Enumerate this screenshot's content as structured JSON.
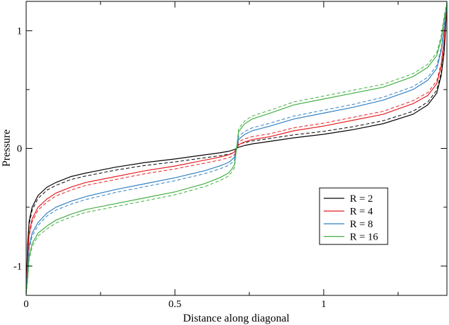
{
  "chart_data": {
    "type": "line",
    "title": "",
    "xlabel": "Distance along diagonal",
    "ylabel": "Pressure",
    "xlim": [
      0,
      1.4142
    ],
    "ylim": [
      -1.25,
      1.25
    ],
    "x_ticks": [
      0,
      0.5,
      1
    ],
    "x_tick_labels": [
      "0",
      "0.5",
      "1"
    ],
    "y_ticks": [
      -1,
      0,
      1
    ],
    "y_tick_labels": [
      "-1",
      "0",
      "1"
    ],
    "grid": false,
    "legend_position": "lower-right",
    "x": [
      0,
      0.005,
      0.01,
      0.02,
      0.04,
      0.07,
      0.1,
      0.15,
      0.2,
      0.3,
      0.4,
      0.5,
      0.6,
      0.65,
      0.68,
      0.69,
      0.7,
      0.7071,
      0.714,
      0.725,
      0.735,
      0.76,
      0.82,
      0.9,
      1.0,
      1.1,
      1.2,
      1.3,
      1.35,
      1.38,
      1.395,
      1.405,
      1.4142
    ],
    "series": [
      {
        "name": "R = 2",
        "color": "#000000",
        "values": [
          -1.22,
          -0.82,
          -0.62,
          -0.5,
          -0.4,
          -0.33,
          -0.29,
          -0.24,
          -0.21,
          -0.16,
          -0.12,
          -0.09,
          -0.055,
          -0.038,
          -0.025,
          -0.018,
          -0.01,
          0,
          0.01,
          0.018,
          0.025,
          0.038,
          0.06,
          0.09,
          0.12,
          0.16,
          0.21,
          0.29,
          0.37,
          0.47,
          0.62,
          0.82,
          1.22
        ]
      },
      {
        "name": "R = 4",
        "color": "#e8191c",
        "values": [
          -1.22,
          -0.92,
          -0.72,
          -0.6,
          -0.5,
          -0.43,
          -0.38,
          -0.33,
          -0.29,
          -0.24,
          -0.19,
          -0.15,
          -0.1,
          -0.075,
          -0.055,
          -0.045,
          -0.03,
          0,
          0.03,
          0.045,
          0.055,
          0.075,
          0.1,
          0.15,
          0.19,
          0.24,
          0.29,
          0.38,
          0.45,
          0.55,
          0.7,
          0.92,
          1.22
        ]
      },
      {
        "name": "R = 8",
        "color": "#2f7fc1",
        "values": [
          -1.22,
          -1.02,
          -0.83,
          -0.72,
          -0.63,
          -0.55,
          -0.5,
          -0.45,
          -0.41,
          -0.35,
          -0.3,
          -0.25,
          -0.19,
          -0.15,
          -0.12,
          -0.1,
          -0.075,
          0,
          0.075,
          0.1,
          0.12,
          0.15,
          0.19,
          0.25,
          0.3,
          0.35,
          0.41,
          0.5,
          0.58,
          0.68,
          0.83,
          1.02,
          1.22
        ]
      },
      {
        "name": "R = 16",
        "color": "#3fae3f",
        "values": [
          -1.22,
          -1.1,
          -0.92,
          -0.81,
          -0.72,
          -0.66,
          -0.61,
          -0.56,
          -0.52,
          -0.47,
          -0.42,
          -0.37,
          -0.3,
          -0.25,
          -0.21,
          -0.18,
          -0.14,
          0,
          0.14,
          0.18,
          0.21,
          0.25,
          0.3,
          0.37,
          0.42,
          0.47,
          0.52,
          0.61,
          0.69,
          0.79,
          0.93,
          1.1,
          1.22
        ]
      }
    ],
    "dashed_reference": true
  }
}
